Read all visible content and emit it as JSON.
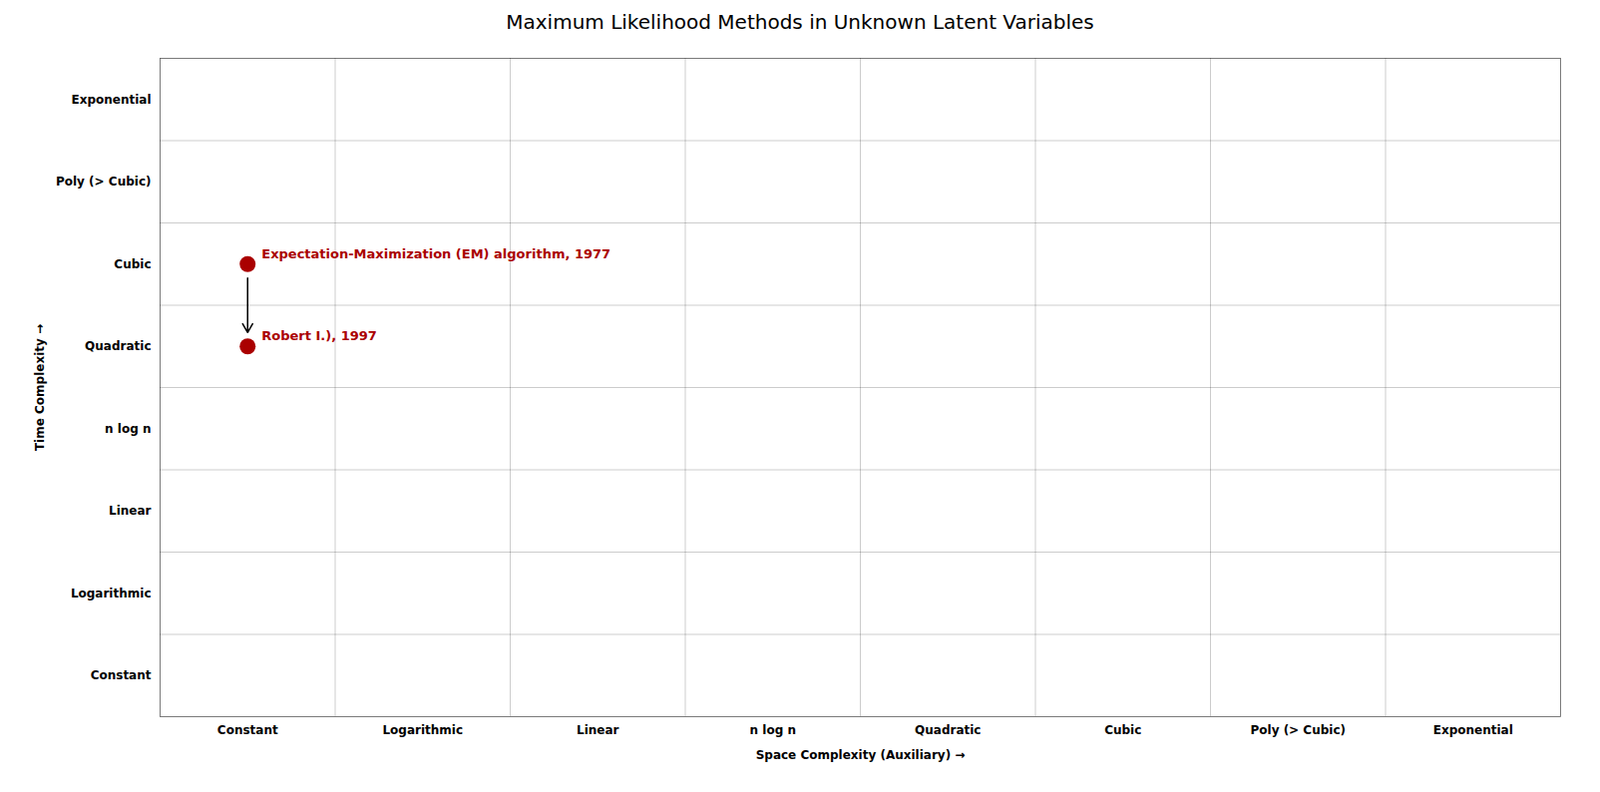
{
  "chart_data": {
    "type": "scatter",
    "title": "Maximum Likelihood Methods in Unknown Latent Variables",
    "xlabel": "Space Complexity (Auxiliary)",
    "ylabel": "Time Complexity",
    "x_categories": [
      "Constant",
      "Logarithmic",
      "Linear",
      "n log n",
      "Quadratic",
      "Cubic",
      "Poly (> Cubic)",
      "Exponential"
    ],
    "y_categories": [
      "Constant",
      "Logarithmic",
      "Linear",
      "n log n",
      "Quadratic",
      "Cubic",
      "Poly (> Cubic)",
      "Exponential"
    ],
    "points": [
      {
        "x": "Constant",
        "y": "Cubic",
        "label": "Expectation-Maximization (EM) algorithm, 1977",
        "color": "#aa0000"
      },
      {
        "x": "Constant",
        "y": "Quadratic",
        "label": "Robert I.), 1997",
        "color": "#aa0000"
      }
    ],
    "arrow": {
      "x": "Constant",
      "from": "Cubic",
      "to": "Quadratic",
      "color": "black"
    },
    "grid": true
  }
}
